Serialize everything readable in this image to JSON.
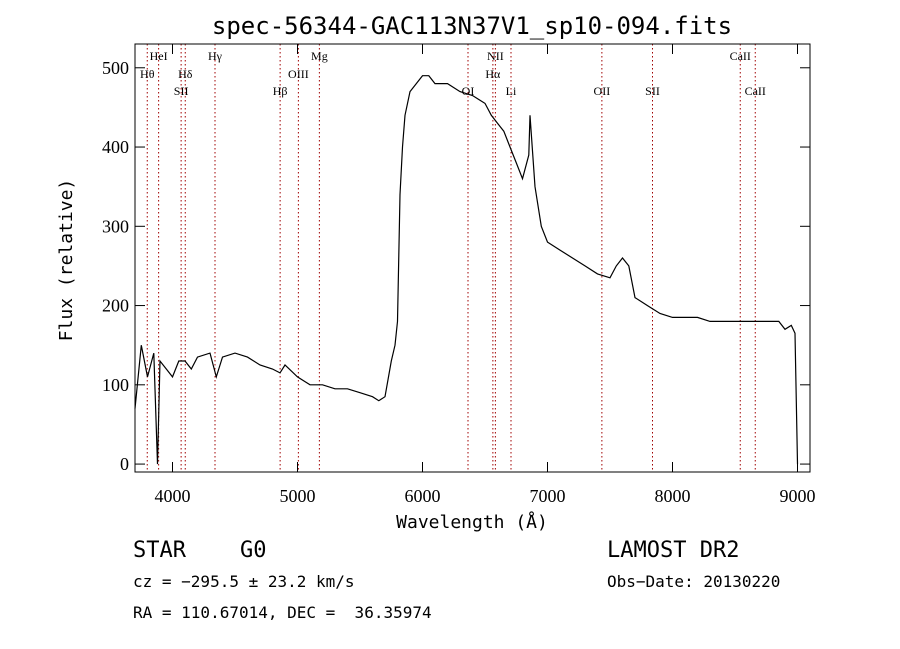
{
  "chart_data": {
    "type": "line",
    "title": "spec-56344-GAC113N37V1_sp10-094.fits",
    "xlabel": "Wavelength (Å)",
    "ylabel": "Flux (relative)",
    "xlim": [
      3700,
      9100
    ],
    "ylim": [
      -10,
      530
    ],
    "x_ticks": [
      4000,
      5000,
      6000,
      7000,
      8000,
      9000
    ],
    "y_ticks": [
      0,
      100,
      200,
      300,
      400,
      500
    ],
    "grid": false,
    "series": [
      {
        "color": "#000000",
        "x": [
          3700,
          3750,
          3800,
          3850,
          3880,
          3900,
          3950,
          4000,
          4050,
          4100,
          4150,
          4200,
          4300,
          4350,
          4400,
          4500,
          4600,
          4700,
          4800,
          4860,
          4900,
          5000,
          5100,
          5200,
          5300,
          5400,
          5500,
          5600,
          5650,
          5700,
          5750,
          5780,
          5800,
          5820,
          5840,
          5860,
          5900,
          5950,
          6000,
          6050,
          6100,
          6200,
          6300,
          6400,
          6450,
          6500,
          6550,
          6600,
          6650,
          6700,
          6750,
          6800,
          6850,
          6860,
          6900,
          6950,
          7000,
          7100,
          7200,
          7300,
          7400,
          7500,
          7550,
          7600,
          7650,
          7700,
          7750,
          7800,
          7900,
          8000,
          8100,
          8200,
          8300,
          8400,
          8500,
          8600,
          8700,
          8800,
          8850,
          8900,
          8950,
          8980,
          9000
        ],
        "y": [
          70,
          150,
          110,
          140,
          0,
          130,
          120,
          110,
          130,
          130,
          120,
          135,
          140,
          110,
          135,
          140,
          135,
          125,
          120,
          115,
          125,
          110,
          100,
          100,
          95,
          95,
          90,
          85,
          80,
          85,
          130,
          150,
          180,
          340,
          400,
          440,
          470,
          480,
          490,
          490,
          480,
          480,
          470,
          465,
          460,
          455,
          440,
          430,
          420,
          400,
          380,
          360,
          390,
          440,
          350,
          300,
          280,
          270,
          260,
          250,
          240,
          235,
          250,
          260,
          250,
          210,
          205,
          200,
          190,
          185,
          185,
          185,
          180,
          180,
          180,
          180,
          180,
          180,
          180,
          170,
          175,
          165,
          0
        ]
      }
    ],
    "lines_top_row": [
      {
        "label": "HeI",
        "x": 3889
      },
      {
        "label": "Hγ",
        "x": 4340
      },
      {
        "label": "Mg",
        "x": 5175
      },
      {
        "label": "NII",
        "x": 6583
      },
      {
        "label": "CaII",
        "x": 8542
      }
    ],
    "lines_second_row": [
      {
        "label": "Hθ",
        "x": 3798
      },
      {
        "label": "Hδ",
        "x": 4102
      },
      {
        "label": "OIII",
        "x": 5007
      },
      {
        "label": "Hα",
        "x": 6563
      }
    ],
    "lines_third_row": [
      {
        "label": "SII",
        "x": 4069
      },
      {
        "label": "Hβ",
        "x": 4861
      },
      {
        "label": "OI",
        "x": 6364
      },
      {
        "label": "Li",
        "x": 6708
      },
      {
        "label": "OII",
        "x": 7435
      },
      {
        "label": "SII",
        "x": 7840
      },
      {
        "label": "CaII",
        "x": 8662
      }
    ]
  },
  "info": {
    "class": "STAR",
    "subclass": "G0",
    "survey": "LAMOST DR2",
    "cz": "cz = −295.5 ± 23.2 km/s",
    "obs_date": "Obs−Date: 20130220",
    "coords": "RA = 110.67014, DEC =  36.35974"
  }
}
